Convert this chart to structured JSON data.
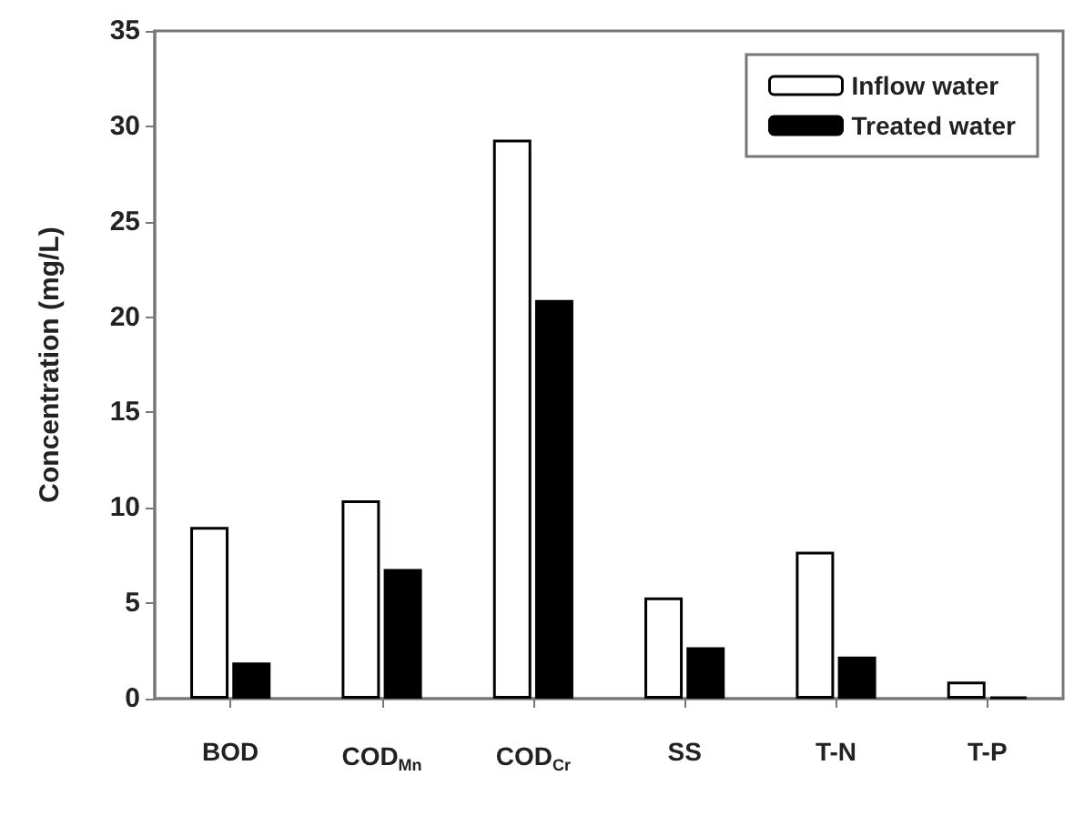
{
  "chart_data": {
    "type": "bar",
    "ylabel": "Concentration (mg/L)",
    "categories": [
      "BOD",
      "COD$_{Mn}$",
      "COD$_{Cr}$",
      "SS",
      "T-N",
      "T-P"
    ],
    "series": [
      {
        "name": "Inflow water",
        "color": "#ffffff",
        "values": [
          9.0,
          10.4,
          29.3,
          5.3,
          7.7,
          0.9
        ]
      },
      {
        "name": "Treated water",
        "color": "#000000",
        "values": [
          1.9,
          6.8,
          20.9,
          2.7,
          2.2,
          0.1
        ]
      }
    ],
    "ylim": [
      0,
      35
    ],
    "yticks": [
      0,
      5,
      10,
      15,
      20,
      25,
      30,
      35
    ],
    "grid": false,
    "legend": "top right"
  }
}
